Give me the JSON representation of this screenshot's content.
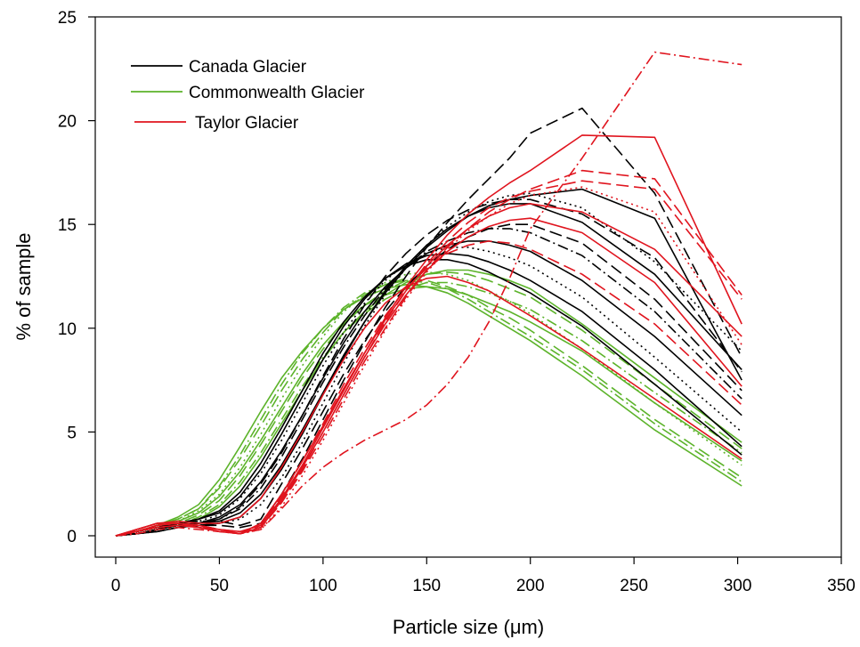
{
  "chart_data": {
    "type": "line",
    "title": "",
    "xlabel": "Particle size (μm)",
    "ylabel": "% of sample",
    "xlim": [
      0,
      350
    ],
    "ylim": [
      0,
      25
    ],
    "xticks": [
      0,
      50,
      100,
      150,
      200,
      250,
      300,
      350
    ],
    "yticks": [
      0,
      5,
      10,
      15,
      20,
      25
    ],
    "grid": false,
    "legend_position": "top-left",
    "legend": [
      {
        "label": "Canada Glacier",
        "color": "#000000"
      },
      {
        "label": "Commonwealth Glacier",
        "color": "#5cb32a"
      },
      {
        "label": "Taylor Glacier",
        "color": "#e0141e"
      }
    ],
    "x": [
      0,
      10,
      20,
      30,
      40,
      50,
      60,
      70,
      80,
      90,
      100,
      110,
      120,
      130,
      140,
      150,
      160,
      170,
      180,
      190,
      200,
      225,
      260,
      302
    ],
    "series": [
      {
        "group": "Commonwealth Glacier",
        "color": "#5cb32a",
        "dash": "solid",
        "values": [
          0,
          0.2,
          0.4,
          0.7,
          1.1,
          1.9,
          3.1,
          4.6,
          6.2,
          7.8,
          9.2,
          10.3,
          11.1,
          11.6,
          11.9,
          12,
          11.9,
          11.6,
          11.2,
          10.8,
          10.3,
          8.9,
          6.4,
          3.6
        ]
      },
      {
        "group": "Commonwealth Glacier",
        "color": "#5cb32a",
        "dash": "dash",
        "values": [
          0,
          0.2,
          0.5,
          0.8,
          1.3,
          2.3,
          3.7,
          5.3,
          7,
          8.5,
          9.8,
          10.9,
          11.6,
          12.1,
          12.4,
          12.3,
          12,
          11.6,
          11,
          10.5,
          9.9,
          8.2,
          5.6,
          2.8
        ]
      },
      {
        "group": "Commonwealth Glacier",
        "color": "#5cb32a",
        "dash": "dashdot",
        "values": [
          0,
          0.1,
          0.3,
          0.5,
          0.9,
          1.5,
          2.6,
          4,
          5.6,
          7.2,
          8.6,
          9.8,
          10.7,
          11.4,
          11.9,
          12.2,
          12.2,
          12,
          11.7,
          11.3,
          10.9,
          9.4,
          6.9,
          4
        ]
      },
      {
        "group": "Commonwealth Glacier",
        "color": "#5cb32a",
        "dash": "dot",
        "values": [
          0,
          0.2,
          0.4,
          0.7,
          1.2,
          2,
          3.3,
          4.9,
          6.6,
          8.2,
          9.6,
          10.8,
          11.6,
          12.2,
          12.6,
          12.7,
          12.6,
          12.3,
          11.8,
          11.3,
          10.7,
          9,
          6.4,
          3.4
        ]
      },
      {
        "group": "Commonwealth Glacier",
        "color": "#5cb32a",
        "dash": "solid",
        "values": [
          0,
          0.2,
          0.5,
          0.9,
          1.5,
          2.7,
          4.3,
          6,
          7.6,
          8.9,
          10,
          10.9,
          11.5,
          11.9,
          12.1,
          12,
          11.7,
          11.2,
          10.6,
          10,
          9.4,
          7.7,
          5.1,
          2.4
        ]
      },
      {
        "group": "Commonwealth Glacier",
        "color": "#5cb32a",
        "dash": "dash",
        "values": [
          0,
          0.1,
          0.3,
          0.6,
          1,
          1.7,
          2.9,
          4.4,
          6,
          7.6,
          9,
          10.2,
          11.1,
          11.8,
          12.3,
          12.6,
          12.7,
          12.6,
          12.3,
          11.9,
          11.5,
          9.9,
          7.3,
          4.2
        ]
      },
      {
        "group": "Commonwealth Glacier",
        "color": "#5cb32a",
        "dash": "solid",
        "values": [
          0,
          0.1,
          0.3,
          0.5,
          0.8,
          1.4,
          2.4,
          3.8,
          5.4,
          7,
          8.5,
          9.8,
          10.8,
          11.6,
          12.2,
          12.6,
          12.8,
          12.8,
          12.6,
          12.3,
          11.9,
          10.2,
          7.6,
          4.5
        ]
      },
      {
        "group": "Commonwealth Glacier",
        "color": "#5cb32a",
        "dash": "dashdot",
        "values": [
          0,
          0.2,
          0.5,
          0.8,
          1.3,
          2.4,
          3.9,
          5.6,
          7.3,
          8.8,
          10,
          11,
          11.7,
          12.1,
          12.3,
          12.2,
          11.9,
          11.4,
          10.8,
          10.2,
          9.6,
          8,
          5.4,
          2.6
        ]
      },
      {
        "group": "Canada Glacier",
        "color": "#000000",
        "dash": "solid",
        "values": [
          0,
          0.1,
          0.3,
          0.5,
          0.6,
          0.9,
          1.5,
          2.6,
          4.1,
          5.8,
          7.6,
          9.3,
          10.8,
          12,
          12.9,
          13.6,
          14,
          14.2,
          14.2,
          14,
          13.7,
          12.3,
          9.6,
          5.8
        ]
      },
      {
        "group": "Canada Glacier",
        "color": "#000000",
        "dash": "dash",
        "values": [
          0,
          0.1,
          0.3,
          0.6,
          0.7,
          0.7,
          0.5,
          0.8,
          2.5,
          4.2,
          6,
          7.8,
          9.4,
          10.8,
          12,
          13,
          13.8,
          14.4,
          14.8,
          15,
          15,
          14.1,
          11.4,
          7
        ]
      },
      {
        "group": "Canada Glacier",
        "color": "#000000",
        "dash": "dot",
        "values": [
          0,
          0.2,
          0.4,
          0.6,
          0.7,
          1,
          1.8,
          3,
          4.6,
          6.4,
          8.2,
          9.8,
          11.2,
          12.3,
          13.1,
          13.6,
          13.9,
          13.9,
          13.7,
          13.4,
          13,
          11.5,
          8.6,
          5
        ]
      },
      {
        "group": "Canada Glacier",
        "color": "#000000",
        "dash": "solid",
        "values": [
          0,
          0.1,
          0.2,
          0.4,
          0.5,
          0.6,
          0.9,
          1.8,
          3.2,
          4.9,
          6.8,
          8.6,
          10.3,
          11.8,
          13,
          14,
          14.8,
          15.4,
          15.8,
          16,
          16,
          15.1,
          12.6,
          8
        ]
      },
      {
        "group": "Canada Glacier",
        "color": "#000000",
        "dash": "dashdot",
        "values": [
          0,
          0.1,
          0.3,
          0.5,
          0.6,
          0.8,
          1.3,
          2.3,
          3.8,
          5.6,
          7.4,
          9.1,
          10.6,
          11.9,
          12.9,
          13.7,
          14.2,
          14.6,
          14.8,
          14.8,
          14.6,
          13.5,
          10.8,
          6.6
        ]
      },
      {
        "group": "Canada Glacier",
        "color": "#000000",
        "dash": "dash",
        "values": [
          0,
          0.1,
          0.2,
          0.4,
          0.5,
          0.5,
          0.4,
          0.6,
          2,
          3.7,
          5.6,
          7.5,
          9.3,
          11,
          12.5,
          13.9,
          15.1,
          16.2,
          17.2,
          18.2,
          19.4,
          20.6,
          16.5,
          8.6
        ]
      },
      {
        "group": "Canada Glacier",
        "color": "#000000",
        "dash": "solid",
        "values": [
          0,
          0.2,
          0.4,
          0.6,
          0.8,
          1.1,
          1.9,
          3.2,
          4.9,
          6.7,
          8.5,
          10.1,
          11.4,
          12.4,
          13.1,
          13.5,
          13.6,
          13.5,
          13.2,
          12.8,
          12.3,
          10.8,
          8,
          4.3
        ]
      },
      {
        "group": "Canada Glacier",
        "color": "#000000",
        "dash": "solid",
        "values": [
          0,
          0.1,
          0.3,
          0.5,
          0.6,
          0.7,
          1.1,
          2,
          3.4,
          5.1,
          6.9,
          8.7,
          10.3,
          11.7,
          12.9,
          13.9,
          14.7,
          15.4,
          15.9,
          16.2,
          16.4,
          16.7,
          15.3,
          7.5
        ]
      },
      {
        "group": "Canada Glacier",
        "color": "#000000",
        "dash": "dot",
        "values": [
          0,
          0.1,
          0.2,
          0.4,
          0.5,
          0.6,
          0.8,
          1.5,
          2.8,
          4.5,
          6.4,
          8.3,
          10.1,
          11.6,
          12.9,
          14,
          14.9,
          15.6,
          16.1,
          16.4,
          16.5,
          15.8,
          13.2,
          8.9
        ]
      },
      {
        "group": "Canada Glacier",
        "color": "#000000",
        "dash": "solid",
        "values": [
          0,
          0.2,
          0.4,
          0.6,
          0.8,
          1.2,
          2.1,
          3.5,
          5.2,
          7,
          8.8,
          10.3,
          11.5,
          12.4,
          13,
          13.3,
          13.3,
          13.1,
          12.7,
          12.2,
          11.7,
          10.1,
          7.3,
          3.9
        ]
      },
      {
        "group": "Canada Glacier",
        "color": "#000000",
        "dash": "dash",
        "values": [
          0,
          0.1,
          0.3,
          0.5,
          0.6,
          0.8,
          1.4,
          2.5,
          4,
          5.8,
          7.7,
          9.5,
          11.1,
          12.5,
          13.6,
          14.5,
          15.2,
          15.7,
          16,
          16.2,
          16.2,
          15.5,
          13.4,
          7.9
        ]
      },
      {
        "group": "Taylor Glacier",
        "color": "#e0141e",
        "dash": "solid",
        "values": [
          0,
          0.3,
          0.6,
          0.6,
          0.4,
          0.2,
          0.1,
          0.6,
          2,
          3.6,
          5.3,
          7.1,
          8.8,
          10.4,
          11.8,
          13,
          14,
          14.8,
          15.4,
          15.8,
          16,
          15.6,
          13.8,
          9.6
        ]
      },
      {
        "group": "Taylor Glacier",
        "color": "#e0141e",
        "dash": "dash",
        "values": [
          0,
          0.2,
          0.5,
          0.6,
          0.5,
          0.3,
          0.2,
          0.4,
          1.6,
          3.1,
          4.8,
          6.6,
          8.4,
          10,
          11.5,
          12.8,
          13.9,
          14.8,
          15.6,
          16.2,
          16.7,
          17.6,
          17.2,
          11.6
        ]
      },
      {
        "group": "Taylor Glacier",
        "color": "#e0141e",
        "dash": "dashdot",
        "values": [
          0,
          0.1,
          0.3,
          0.4,
          0.3,
          0.2,
          0.1,
          0.3,
          1.3,
          2.4,
          3.3,
          4,
          4.6,
          5.1,
          5.6,
          6.3,
          7.3,
          8.6,
          10.3,
          12.4,
          14.8,
          18.2,
          23.3,
          22.7
        ]
      },
      {
        "group": "Taylor Glacier",
        "color": "#e0141e",
        "dash": "solid",
        "values": [
          0,
          0.2,
          0.4,
          0.5,
          0.4,
          0.3,
          0.2,
          0.5,
          1.8,
          3.4,
          5.2,
          7,
          8.8,
          10.5,
          12,
          13.3,
          14.5,
          15.5,
          16.3,
          17,
          17.6,
          19.3,
          19.2,
          10.2
        ]
      },
      {
        "group": "Taylor Glacier",
        "color": "#e0141e",
        "dash": "dash",
        "values": [
          0,
          0.3,
          0.6,
          0.6,
          0.5,
          0.3,
          0.1,
          0.5,
          1.9,
          3.6,
          5.4,
          7.3,
          9,
          10.6,
          11.9,
          12.9,
          13.6,
          14,
          14.2,
          14.1,
          13.8,
          12.6,
          10.2,
          6.3
        ]
      },
      {
        "group": "Taylor Glacier",
        "color": "#e0141e",
        "dash": "solid",
        "values": [
          0,
          0.2,
          0.5,
          0.6,
          0.5,
          0.3,
          0.1,
          0.4,
          1.7,
          3.3,
          5,
          6.8,
          8.6,
          10.2,
          11.6,
          12.8,
          13.7,
          14.4,
          14.9,
          15.2,
          15.3,
          14.6,
          12.2,
          7.2
        ]
      },
      {
        "group": "Taylor Glacier",
        "color": "#e0141e",
        "dash": "dot",
        "values": [
          0,
          0.2,
          0.4,
          0.5,
          0.4,
          0.2,
          0.1,
          0.3,
          1.4,
          2.9,
          4.6,
          6.4,
          8.2,
          9.9,
          11.4,
          12.7,
          13.8,
          14.7,
          15.4,
          16,
          16.4,
          16.8,
          15.6,
          9.2
        ]
      },
      {
        "group": "Taylor Glacier",
        "color": "#e0141e",
        "dash": "solid",
        "values": [
          0,
          0.3,
          0.6,
          0.7,
          0.6,
          0.6,
          0.9,
          1.8,
          3.3,
          5,
          6.8,
          8.5,
          10,
          11.2,
          12,
          12.4,
          12.5,
          12.2,
          11.8,
          11.2,
          10.6,
          9,
          6.6,
          3.7
        ]
      },
      {
        "group": "Taylor Glacier",
        "color": "#e0141e",
        "dash": "dash",
        "values": [
          0,
          0.2,
          0.5,
          0.6,
          0.5,
          0.3,
          0.1,
          0.4,
          1.6,
          3.2,
          5,
          6.8,
          8.6,
          10.3,
          11.8,
          13.1,
          14.2,
          15.1,
          15.8,
          16.3,
          16.6,
          17.1,
          16.7,
          11.4
        ]
      }
    ]
  }
}
